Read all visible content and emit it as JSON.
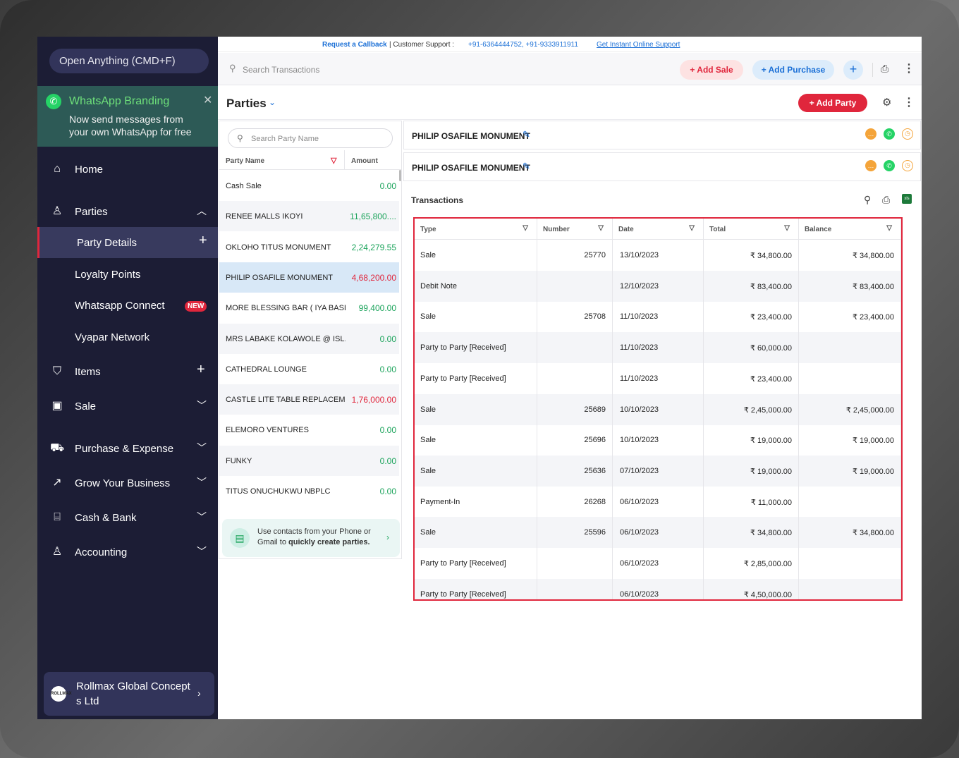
{
  "sidebar": {
    "open_anything": "Open Anything (CMD+F)",
    "whatsapp": {
      "title": "WhatsApp Branding",
      "text": "Now send messages from your own WhatsApp for free"
    },
    "items": [
      {
        "label": "Home",
        "icon": "home-icon"
      },
      {
        "label": "Parties",
        "icon": "users-icon"
      },
      {
        "label": "Party Details"
      },
      {
        "label": "Loyalty Points"
      },
      {
        "label": "Whatsapp Connect",
        "badge": "NEW"
      },
      {
        "label": "Vyapar Network"
      },
      {
        "label": "Items",
        "icon": "bag-icon"
      },
      {
        "label": "Sale",
        "icon": "receipt-icon"
      },
      {
        "label": "Purchase & Expense",
        "icon": "cart-icon"
      },
      {
        "label": "Grow Your Business",
        "icon": "trend-icon"
      },
      {
        "label": "Cash & Bank",
        "icon": "bank-icon"
      },
      {
        "label": "Accounting",
        "icon": "accounting-icon"
      }
    ],
    "company": {
      "logo": "ROLLMAX",
      "name": "Rollmax Global Concept s Ltd"
    }
  },
  "topbar": {
    "request_callback": "Request a Callback",
    "customer_support": "| Customer Support :",
    "phones": "+91-6364444752, +91-9333911911",
    "instant_support": "Get Instant Online Support"
  },
  "search": {
    "placeholder": "Search Transactions"
  },
  "actions": {
    "add_sale": "+ Add Sale",
    "add_purchase": "+ Add Purchase",
    "plus": "+"
  },
  "parties_header": {
    "title": "Parties",
    "add_party": "+ Add Party"
  },
  "party_list": {
    "search_placeholder": "Search Party Name",
    "col_name": "Party Name",
    "col_amount": "Amount",
    "rows": [
      {
        "name": "Cash Sale",
        "amount": "0.00",
        "type": "pos"
      },
      {
        "name": "RENEE MALLS IKOYI",
        "amount": "11,65,800....",
        "type": "pos"
      },
      {
        "name": "OKLOHO TITUS MONUMENT",
        "amount": "2,24,279.55",
        "type": "pos"
      },
      {
        "name": "PHILIP OSAFILE MONUMENT",
        "amount": "4,68,200.00",
        "type": "neg"
      },
      {
        "name": "MORE BLESSING BAR ( IYA BASI...",
        "amount": "99,400.00",
        "type": "pos"
      },
      {
        "name": "MRS LABAKE KOLAWOLE @ ISL...",
        "amount": "0.00",
        "type": "pos"
      },
      {
        "name": "CATHEDRAL LOUNGE",
        "amount": "0.00",
        "type": "pos"
      },
      {
        "name": "CASTLE LITE TABLE REPLACEM...",
        "amount": "1,76,000.00",
        "type": "neg"
      },
      {
        "name": "ELEMORO VENTURES",
        "amount": "0.00",
        "type": "pos"
      },
      {
        "name": "FUNKY",
        "amount": "0.00",
        "type": "pos"
      },
      {
        "name": "TITUS ONUCHUKWU NBPLC",
        "amount": "0.00",
        "type": "pos"
      }
    ],
    "contacts_text_1": "Use contacts from your Phone or Gmail to ",
    "contacts_text_bold": "quickly create parties."
  },
  "party_cards": [
    "PHILIP OSAFILE MONUMENT",
    "PHILIP OSAFILE MONUMENT"
  ],
  "transactions": {
    "title": "Transactions",
    "columns": [
      "Type",
      "Number",
      "Date",
      "Total",
      "Balance"
    ],
    "rows": [
      {
        "type": "Sale",
        "number": "25770",
        "date": "13/10/2023",
        "total": "₹ 34,800.00",
        "balance": "₹ 34,800.00"
      },
      {
        "type": "Debit Note",
        "number": "",
        "date": "12/10/2023",
        "total": "₹ 83,400.00",
        "balance": "₹ 83,400.00"
      },
      {
        "type": "Sale",
        "number": "25708",
        "date": "11/10/2023",
        "total": "₹ 23,400.00",
        "balance": "₹ 23,400.00"
      },
      {
        "type": "Party to Party [Received]",
        "number": "",
        "date": "11/10/2023",
        "total": "₹ 60,000.00",
        "balance": ""
      },
      {
        "type": "Party to Party [Received]",
        "number": "",
        "date": "11/10/2023",
        "total": "₹ 23,400.00",
        "balance": ""
      },
      {
        "type": "Sale",
        "number": "25689",
        "date": "10/10/2023",
        "total": "₹ 2,45,000.00",
        "balance": "₹ 2,45,000.00"
      },
      {
        "type": "Sale",
        "number": "25696",
        "date": "10/10/2023",
        "total": "₹ 19,000.00",
        "balance": "₹ 19,000.00"
      },
      {
        "type": "Sale",
        "number": "25636",
        "date": "07/10/2023",
        "total": "₹ 19,000.00",
        "balance": "₹ 19,000.00"
      },
      {
        "type": "Payment-In",
        "number": "26268",
        "date": "06/10/2023",
        "total": "₹ 11,000.00",
        "balance": ""
      },
      {
        "type": "Sale",
        "number": "25596",
        "date": "06/10/2023",
        "total": "₹ 34,800.00",
        "balance": "₹ 34,800.00"
      },
      {
        "type": "Party to Party [Received]",
        "number": "",
        "date": "06/10/2023",
        "total": "₹ 2,85,000.00",
        "balance": ""
      },
      {
        "type": "Party to Party [Received]",
        "number": "",
        "date": "06/10/2023",
        "total": "₹ 4,50,000.00",
        "balance": ""
      }
    ]
  },
  "colors": {
    "accent_red": "#e0263c",
    "accent_blue": "#1a6fd6",
    "sidebar_bg": "#1c1d35",
    "positive": "#1aa35a"
  }
}
